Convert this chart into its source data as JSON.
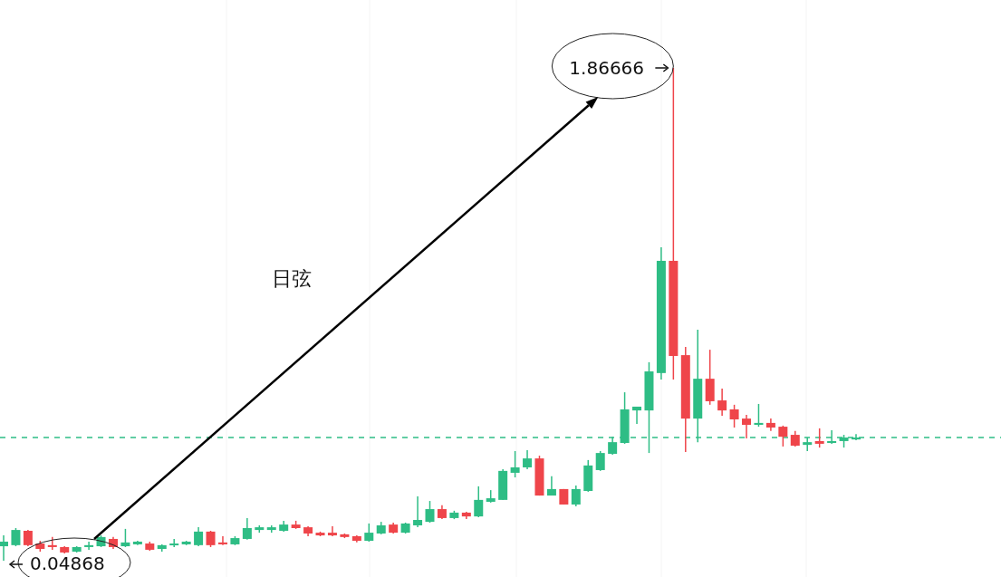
{
  "chart_data": {
    "type": "candlestick",
    "categories": [
      null,
      null,
      null,
      null,
      null,
      null,
      null,
      null,
      null,
      null,
      null,
      null,
      null,
      null,
      null,
      null,
      null,
      null,
      null,
      null,
      null,
      null,
      null,
      null,
      null,
      null,
      null,
      null,
      null,
      null,
      null,
      null,
      null,
      null,
      null,
      null,
      null,
      null,
      null,
      null,
      null,
      null,
      null,
      null,
      null,
      null,
      null,
      null,
      null,
      null,
      null,
      null,
      null,
      null,
      null,
      null,
      null,
      null,
      null,
      null,
      null,
      null,
      null,
      null,
      null,
      null,
      null,
      null,
      null,
      null,
      null
    ],
    "ohlc": [
      [
        0.102,
        0.142,
        0.04868,
        0.119
      ],
      [
        0.106,
        0.169,
        0.102,
        0.162
      ],
      [
        0.159,
        0.162,
        0.102,
        0.106
      ],
      [
        0.112,
        0.122,
        0.082,
        0.092
      ],
      [
        0.106,
        0.136,
        0.089,
        0.099
      ],
      [
        0.099,
        0.102,
        0.075,
        0.079
      ],
      [
        0.082,
        0.102,
        0.079,
        0.099
      ],
      [
        0.099,
        0.119,
        0.089,
        0.106
      ],
      [
        0.102,
        0.142,
        0.099,
        0.136
      ],
      [
        0.129,
        0.136,
        0.092,
        0.099
      ],
      [
        0.102,
        0.166,
        0.099,
        0.116
      ],
      [
        0.109,
        0.122,
        0.106,
        0.119
      ],
      [
        0.112,
        0.119,
        0.085,
        0.089
      ],
      [
        0.092,
        0.109,
        0.082,
        0.106
      ],
      [
        0.106,
        0.129,
        0.099,
        0.112
      ],
      [
        0.109,
        0.122,
        0.106,
        0.119
      ],
      [
        0.106,
        0.172,
        0.102,
        0.156
      ],
      [
        0.156,
        0.159,
        0.099,
        0.106
      ],
      [
        0.116,
        0.139,
        0.106,
        0.109
      ],
      [
        0.109,
        0.139,
        0.106,
        0.132
      ],
      [
        0.129,
        0.206,
        0.126,
        0.169
      ],
      [
        0.162,
        0.179,
        0.152,
        0.172
      ],
      [
        0.162,
        0.179,
        0.152,
        0.172
      ],
      [
        0.159,
        0.196,
        0.156,
        0.182
      ],
      [
        0.182,
        0.196,
        0.166,
        0.169
      ],
      [
        0.172,
        0.176,
        0.139,
        0.149
      ],
      [
        0.152,
        0.156,
        0.139,
        0.142
      ],
      [
        0.152,
        0.176,
        0.139,
        0.142
      ],
      [
        0.146,
        0.149,
        0.132,
        0.136
      ],
      [
        0.139,
        0.142,
        0.116,
        0.122
      ],
      [
        0.122,
        0.186,
        0.119,
        0.152
      ],
      [
        0.149,
        0.192,
        0.146,
        0.179
      ],
      [
        0.182,
        0.189,
        0.149,
        0.152
      ],
      [
        0.152,
        0.189,
        0.149,
        0.186
      ],
      [
        0.179,
        0.286,
        0.172,
        0.199
      ],
      [
        0.192,
        0.269,
        0.189,
        0.239
      ],
      [
        0.239,
        0.253,
        0.202,
        0.206
      ],
      [
        0.206,
        0.233,
        0.202,
        0.226
      ],
      [
        0.226,
        0.229,
        0.202,
        0.212
      ],
      [
        0.212,
        0.323,
        0.209,
        0.273
      ],
      [
        0.266,
        0.309,
        0.263,
        0.279
      ],
      [
        0.273,
        0.386,
        0.273,
        0.38
      ],
      [
        0.373,
        0.453,
        0.356,
        0.393
      ],
      [
        0.393,
        0.456,
        0.386,
        0.426
      ],
      [
        0.426,
        0.436,
        0.289,
        0.289
      ],
      [
        0.289,
        0.36,
        0.289,
        0.313
      ],
      [
        0.313,
        0.313,
        0.256,
        0.256
      ],
      [
        0.256,
        0.326,
        0.249,
        0.313
      ],
      [
        0.306,
        0.42,
        0.303,
        0.4
      ],
      [
        0.383,
        0.453,
        0.38,
        0.446
      ],
      [
        0.443,
        0.506,
        0.44,
        0.486
      ],
      [
        0.483,
        0.67,
        0.48,
        0.607
      ],
      [
        0.603,
        0.617,
        0.553,
        0.617
      ],
      [
        0.603,
        0.781,
        0.446,
        0.747
      ],
      [
        0.741,
        1.205,
        0.717,
        1.155
      ],
      [
        1.155,
        1.86666,
        0.717,
        0.804
      ],
      [
        0.807,
        0.837,
        0.45,
        0.573
      ],
      [
        0.573,
        0.901,
        0.486,
        0.72
      ],
      [
        0.72,
        0.827,
        0.624,
        0.637
      ],
      [
        0.64,
        0.684,
        0.583,
        0.603
      ],
      [
        0.607,
        0.624,
        0.54,
        0.57
      ],
      [
        0.573,
        0.587,
        0.5,
        0.55
      ],
      [
        0.55,
        0.627,
        0.543,
        0.557
      ],
      [
        0.557,
        0.573,
        0.527,
        0.54
      ],
      [
        0.543,
        0.547,
        0.47,
        0.506
      ],
      [
        0.513,
        0.527,
        0.47,
        0.473
      ],
      [
        0.476,
        0.503,
        0.453,
        0.486
      ],
      [
        0.49,
        0.537,
        0.466,
        0.48
      ],
      [
        0.483,
        0.53,
        0.48,
        0.49
      ],
      [
        0.49,
        0.513,
        0.466,
        0.503
      ],
      [
        0.496,
        0.516,
        0.493,
        0.503
      ]
    ],
    "colors": [
      "#2ebd85",
      "#2ebd85",
      "#ef454a",
      "#ef454a",
      "#ef454a",
      "#ef454a",
      "#2ebd85",
      "#2ebd85",
      "#2ebd85",
      "#ef454a",
      "#2ebd85",
      "#2ebd85",
      "#ef454a",
      "#2ebd85",
      "#2ebd85",
      "#2ebd85",
      "#2ebd85",
      "#ef454a",
      "#ef454a",
      "#2ebd85",
      "#2ebd85",
      "#2ebd85",
      "#2ebd85",
      "#2ebd85",
      "#ef454a",
      "#ef454a",
      "#ef454a",
      "#ef454a",
      "#ef454a",
      "#ef454a",
      "#2ebd85",
      "#2ebd85",
      "#ef454a",
      "#2ebd85",
      "#2ebd85",
      "#2ebd85",
      "#ef454a",
      "#2ebd85",
      "#ef454a",
      "#2ebd85",
      "#2ebd85",
      "#2ebd85",
      "#2ebd85",
      "#2ebd85",
      "#ef454a",
      "#2ebd85",
      "#ef454a",
      "#2ebd85",
      "#2ebd85",
      "#2ebd85",
      "#2ebd85",
      "#2ebd85",
      "#2ebd85",
      "#2ebd85",
      "#2ebd85",
      "#ef454a",
      "#ef454a",
      "#2ebd85",
      "#ef454a",
      "#ef454a",
      "#ef454a",
      "#ef454a",
      "#2ebd85",
      "#ef454a",
      "#ef454a",
      "#ef454a",
      "#2ebd85",
      "#ef454a",
      "#2ebd85",
      "#2ebd85",
      "#2ebd85"
    ],
    "ref_lines": [
      {
        "axis": "y",
        "value": 0.503,
        "color": "#2ebd85",
        "line_style": "dashed"
      }
    ],
    "annotations": [
      "1.86666",
      "0.04868",
      "日弦"
    ],
    "grid": "x"
  }
}
